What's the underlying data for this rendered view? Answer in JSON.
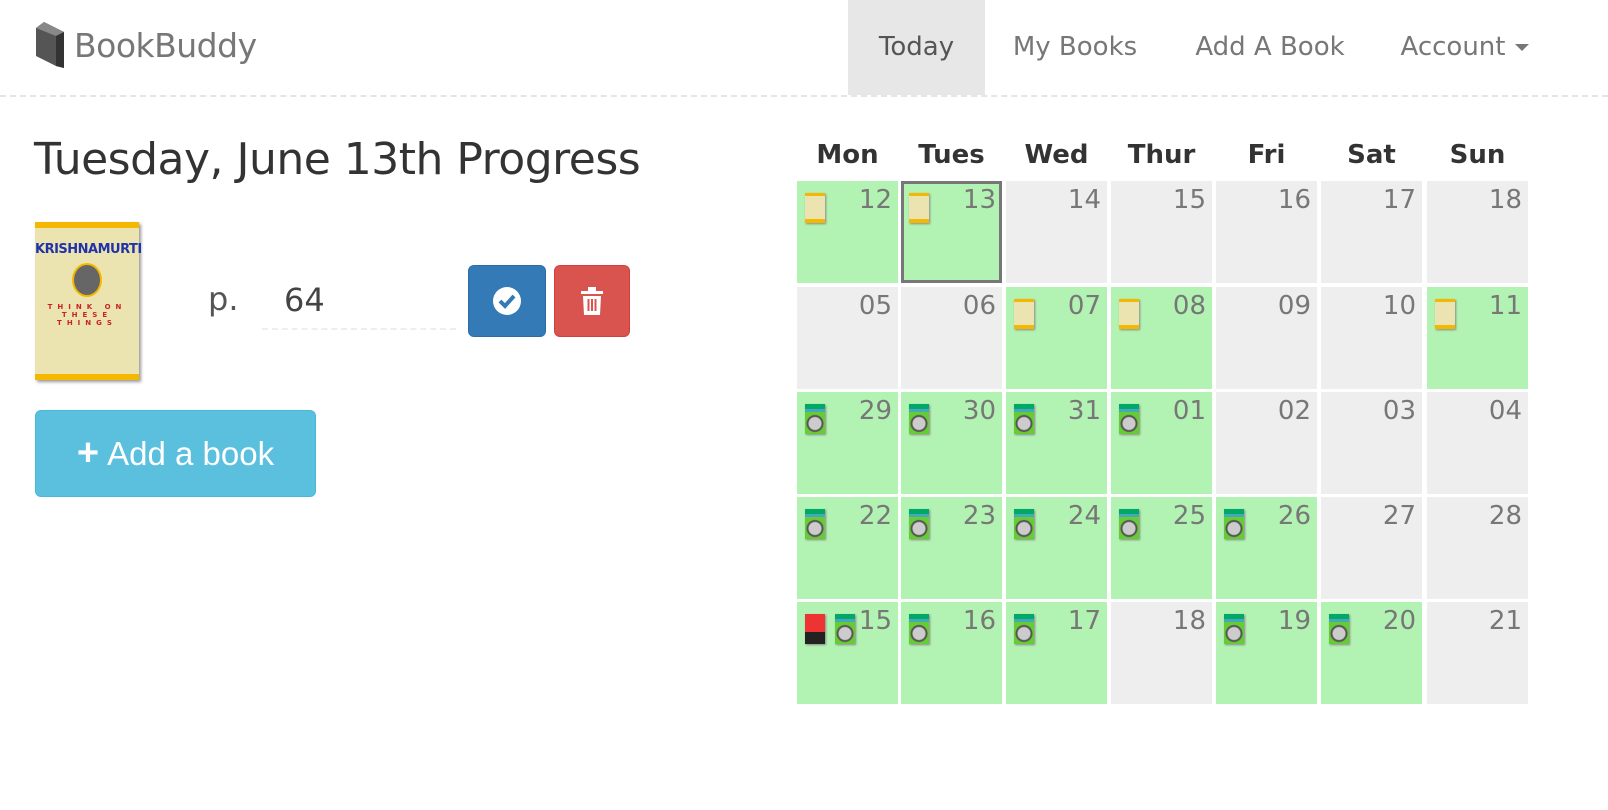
{
  "nav": {
    "brand": "BookBuddy",
    "items": [
      {
        "label": "Today",
        "active": true
      },
      {
        "label": "My Books",
        "active": false
      },
      {
        "label": "Add A Book",
        "active": false
      },
      {
        "label": "Account",
        "active": false,
        "dropdown": true
      }
    ]
  },
  "main": {
    "title": "Tuesday, June 13th Progress",
    "book": {
      "cover_author": "KRISHNAMURTI",
      "cover_title": "THINK ON THESE THINGS"
    },
    "page_label": "p.",
    "page_value": "64",
    "confirm_icon": "check-circle-icon",
    "delete_icon": "trash-icon",
    "add_book_label": "Add a book"
  },
  "calendar": {
    "weekdays": [
      "Mon",
      "Tues",
      "Wed",
      "Thur",
      "Fri",
      "Sat",
      "Sun"
    ],
    "colors": {
      "read": "#b2f2b2",
      "unread": "#eeeeee"
    },
    "weeks": [
      [
        {
          "day": "12",
          "books": [
            "yellow"
          ]
        },
        {
          "day": "13",
          "books": [
            "yellow"
          ],
          "selected": true
        },
        {
          "day": "14",
          "books": []
        },
        {
          "day": "15",
          "books": []
        },
        {
          "day": "16",
          "books": []
        },
        {
          "day": "17",
          "books": []
        },
        {
          "day": "18",
          "books": []
        }
      ],
      [
        {
          "day": "05",
          "books": []
        },
        {
          "day": "06",
          "books": []
        },
        {
          "day": "07",
          "books": [
            "yellow"
          ]
        },
        {
          "day": "08",
          "books": [
            "yellow"
          ]
        },
        {
          "day": "09",
          "books": []
        },
        {
          "day": "10",
          "books": []
        },
        {
          "day": "11",
          "books": [
            "yellow"
          ]
        }
      ],
      [
        {
          "day": "29",
          "books": [
            "green"
          ]
        },
        {
          "day": "30",
          "books": [
            "green"
          ]
        },
        {
          "day": "31",
          "books": [
            "green"
          ]
        },
        {
          "day": "01",
          "books": [
            "green"
          ]
        },
        {
          "day": "02",
          "books": []
        },
        {
          "day": "03",
          "books": []
        },
        {
          "day": "04",
          "books": []
        }
      ],
      [
        {
          "day": "22",
          "books": [
            "green"
          ]
        },
        {
          "day": "23",
          "books": [
            "green"
          ]
        },
        {
          "day": "24",
          "books": [
            "green"
          ]
        },
        {
          "day": "25",
          "books": [
            "green"
          ]
        },
        {
          "day": "26",
          "books": [
            "green"
          ]
        },
        {
          "day": "27",
          "books": []
        },
        {
          "day": "28",
          "books": []
        }
      ],
      [
        {
          "day": "15",
          "books": [
            "red",
            "green"
          ]
        },
        {
          "day": "16",
          "books": [
            "green"
          ]
        },
        {
          "day": "17",
          "books": [
            "green"
          ]
        },
        {
          "day": "18",
          "books": []
        },
        {
          "day": "19",
          "books": [
            "green"
          ]
        },
        {
          "day": "20",
          "books": [
            "green"
          ]
        },
        {
          "day": "21",
          "books": []
        }
      ]
    ]
  }
}
